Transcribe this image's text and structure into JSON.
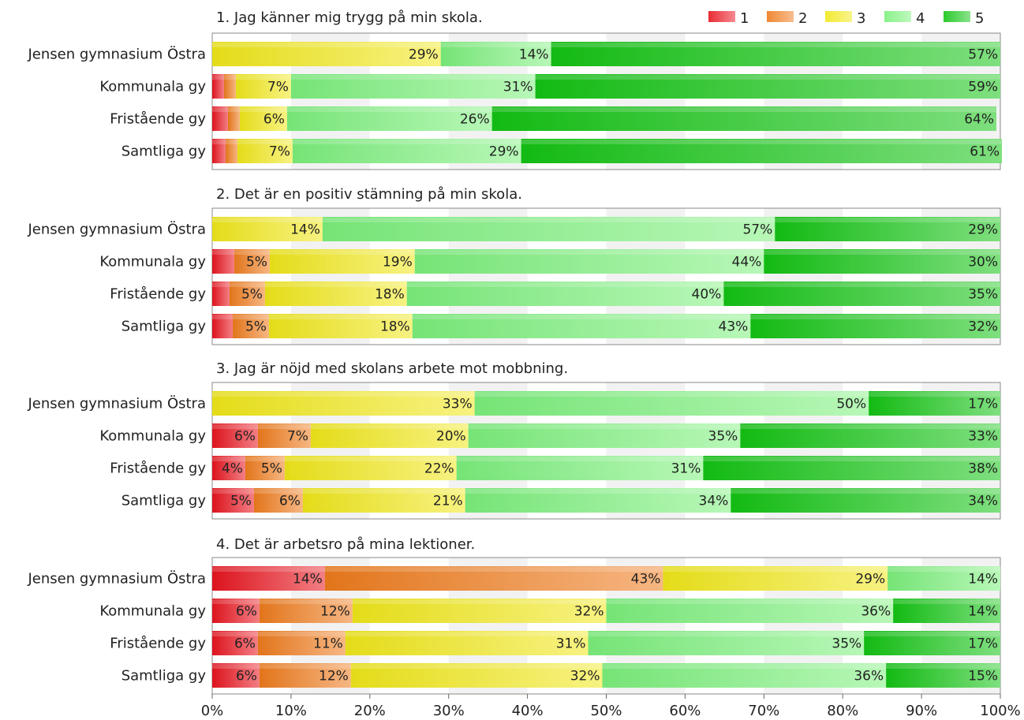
{
  "chart_data": {
    "type": "bar",
    "orientation": "horizontal",
    "stacked": true,
    "percent": true,
    "xlim": [
      0,
      100
    ],
    "x_ticks": [
      "0%",
      "10%",
      "20%",
      "30%",
      "40%",
      "50%",
      "60%",
      "70%",
      "80%",
      "90%",
      "100%"
    ],
    "grid": "vertical bands",
    "legend": {
      "placement": "top-right",
      "entries": [
        "1",
        "2",
        "3",
        "4",
        "5"
      ]
    },
    "colors": [
      "#e8141e",
      "#ee7b1c",
      "#f0e81a",
      "#7cf07c",
      "#14c414"
    ],
    "panels": [
      {
        "title": "1. Jag känner mig trygg på min skola.",
        "categories": [
          "Jensen gymnasium Östra",
          "Kommunala gy",
          "Fristående gy",
          "Samtliga gy"
        ],
        "series": [
          {
            "name": "1",
            "values": [
              0,
              1.5,
              2,
              1.7
            ]
          },
          {
            "name": "2",
            "values": [
              0,
              1.5,
              1.5,
              1.5
            ]
          },
          {
            "name": "3",
            "values": [
              29,
              7,
              6,
              7
            ]
          },
          {
            "name": "4",
            "values": [
              14,
              31,
              26,
              29
            ]
          },
          {
            "name": "5",
            "values": [
              57,
              59,
              64,
              61
            ]
          }
        ],
        "labels": [
          [
            "",
            "",
            "29%",
            "14%",
            "57%"
          ],
          [
            "",
            "",
            "7%",
            "31%",
            "59%"
          ],
          [
            "",
            "",
            "6%",
            "26%",
            "64%"
          ],
          [
            "",
            "",
            "7%",
            "29%",
            "61%"
          ]
        ]
      },
      {
        "title": "2. Det är en positiv stämning på min skola.",
        "categories": [
          "Jensen gymnasium Östra",
          "Kommunala gy",
          "Fristående gy",
          "Samtliga gy"
        ],
        "series": [
          {
            "name": "1",
            "values": [
              0,
              2.8,
              2.2,
              2.6
            ]
          },
          {
            "name": "2",
            "values": [
              0,
              4.5,
              4.5,
              4.6
            ]
          },
          {
            "name": "3",
            "values": [
              14,
              18.4,
              18,
              18.2
            ]
          },
          {
            "name": "4",
            "values": [
              57.4,
              44.3,
              40.2,
              42.9
            ]
          },
          {
            "name": "5",
            "values": [
              28.6,
              30,
              35.1,
              31.7
            ]
          }
        ],
        "labels": [
          [
            "",
            "",
            "14%",
            "57%",
            "29%"
          ],
          [
            "",
            "5%",
            "19%",
            "44%",
            "30%"
          ],
          [
            "",
            "5%",
            "18%",
            "40%",
            "35%"
          ],
          [
            "",
            "5%",
            "18%",
            "43%",
            "32%"
          ]
        ]
      },
      {
        "title": "3. Jag är nöjd med skolans arbete mot mobbning.",
        "categories": [
          "Jensen gymnasium Östra",
          "Kommunala gy",
          "Fristående gy",
          "Samtliga gy"
        ],
        "series": [
          {
            "name": "1",
            "values": [
              0,
              5.8,
              4.2,
              5.3
            ]
          },
          {
            "name": "2",
            "values": [
              0,
              6.7,
              5,
              6.2
            ]
          },
          {
            "name": "3",
            "values": [
              33.3,
              20,
              21.8,
              20.6
            ]
          },
          {
            "name": "4",
            "values": [
              50,
              34.5,
              31.3,
              33.7
            ]
          },
          {
            "name": "5",
            "values": [
              16.7,
              33,
              37.7,
              34.2
            ]
          }
        ],
        "labels": [
          [
            "",
            "",
            "33%",
            "50%",
            "17%"
          ],
          [
            "6%",
            "7%",
            "20%",
            "35%",
            "33%"
          ],
          [
            "4%",
            "5%",
            "22%",
            "31%",
            "38%"
          ],
          [
            "5%",
            "6%",
            "21%",
            "34%",
            "34%"
          ]
        ]
      },
      {
        "title": "4. Det är arbetsro på mina lektioner.",
        "categories": [
          "Jensen gymnasium Östra",
          "Kommunala gy",
          "Fristående gy",
          "Samtliga gy"
        ],
        "series": [
          {
            "name": "1",
            "values": [
              14.3,
              6,
              5.8,
              6
            ]
          },
          {
            "name": "2",
            "values": [
              42.9,
              11.8,
              11.1,
              11.6
            ]
          },
          {
            "name": "3",
            "values": [
              28.5,
              32.2,
              30.8,
              31.9
            ]
          },
          {
            "name": "4",
            "values": [
              14.3,
              36.4,
              35,
              36
            ]
          },
          {
            "name": "5",
            "values": [
              0,
              13.6,
              17.3,
              14.5
            ]
          }
        ],
        "labels": [
          [
            "14%",
            "43%",
            "29%",
            "14%",
            ""
          ],
          [
            "6%",
            "12%",
            "32%",
            "36%",
            "14%"
          ],
          [
            "6%",
            "11%",
            "31%",
            "35%",
            "17%"
          ],
          [
            "6%",
            "12%",
            "32%",
            "36%",
            "15%"
          ]
        ]
      }
    ]
  }
}
